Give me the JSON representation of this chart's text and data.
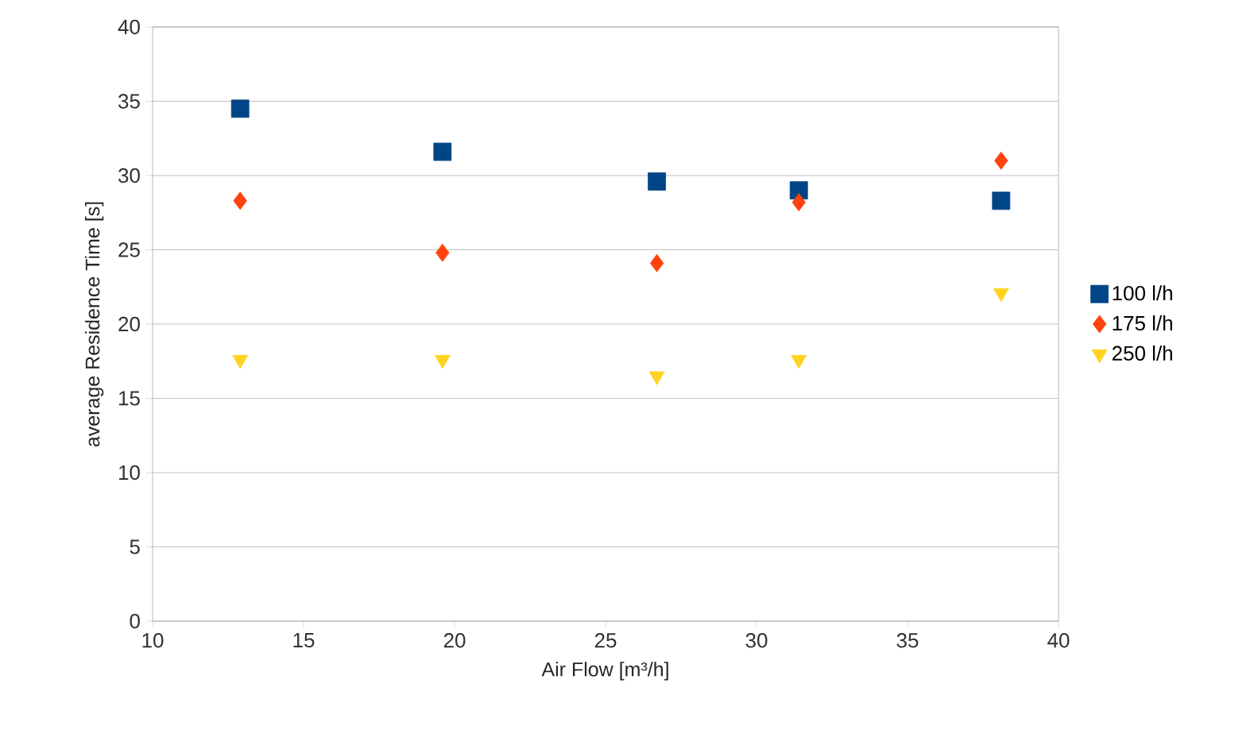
{
  "chart_data": {
    "type": "scatter",
    "xlabel": "Air Flow [m³/h]",
    "ylabel": "average Residence Time [s]",
    "x": [
      12.9,
      19.6,
      26.7,
      31.4,
      38.1
    ],
    "xlim": [
      10,
      40
    ],
    "xticks": [
      10,
      15,
      20,
      25,
      30,
      35,
      40
    ],
    "ylim": [
      0,
      40
    ],
    "yticks": [
      0,
      5,
      10,
      15,
      20,
      25,
      30,
      35,
      40
    ],
    "grid": "y",
    "legend": "right",
    "series": [
      {
        "name": "100 l/h",
        "color": "#004586",
        "marker": "square",
        "values": [
          34.5,
          31.6,
          29.6,
          29.0,
          28.3
        ]
      },
      {
        "name": "175 l/h",
        "color": "#ff420e",
        "marker": "diamond",
        "values": [
          28.3,
          24.8,
          24.1,
          28.2,
          31.0
        ]
      },
      {
        "name": "250 l/h",
        "color": "#ffd320",
        "marker": "triangle",
        "values": [
          17.6,
          17.6,
          16.5,
          17.6,
          22.1
        ]
      }
    ]
  }
}
